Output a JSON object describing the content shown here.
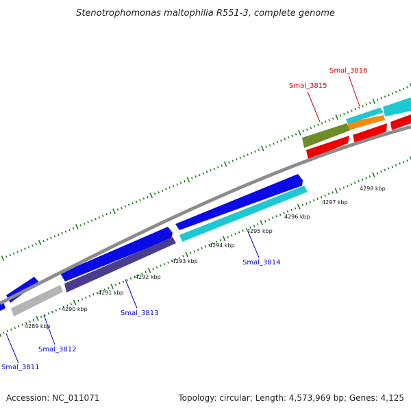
{
  "title": "Stenotrophomonas maltophilia R551-3, complete genome",
  "footer": {
    "accession": "Accession: NC_011071",
    "summary": "Topology: circular; Length: 4,573,969 bp; Genes: 4,125"
  },
  "colors": {
    "backbone": "#8c8c8c",
    "tick": "#1e7a1e",
    "forward_label": "#0000cc",
    "reverse_label": "#cc0000"
  },
  "axis": {
    "unit": "kbp",
    "labels": [
      "4289 kbp",
      "4290 kbp",
      "4291 kbp",
      "4292 kbp",
      "4293 kbp",
      "4294 kbp",
      "4295 kbp",
      "4296 kbp",
      "4297 kbp",
      "4298 kbp"
    ]
  },
  "genes": [
    {
      "name": "Smal_3811",
      "strand": "forward",
      "color": "#0a0ae6"
    },
    {
      "name": "Smal_3812",
      "strand": "reverse-inner",
      "color": "#b4b4b4"
    },
    {
      "name": "Smal_3813",
      "strand": "reverse-inner",
      "color": "#4a3d8f"
    },
    {
      "name": "Smal_3814",
      "strand": "reverse-inner",
      "color": "#1ec8d2"
    },
    {
      "name": "Smal_3815",
      "strand": "reverse",
      "color": "#6e8c28"
    },
    {
      "name": "Smal_3816",
      "strand": "reverse",
      "color": "#f08c14"
    }
  ]
}
